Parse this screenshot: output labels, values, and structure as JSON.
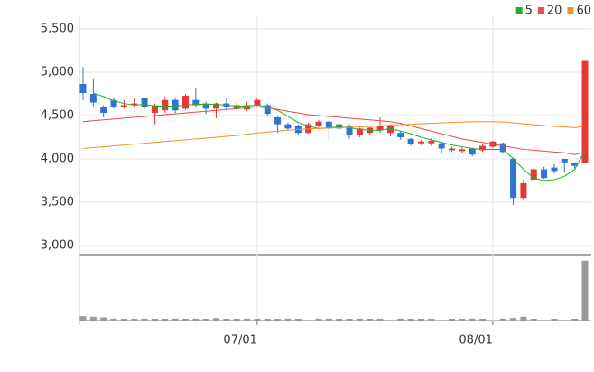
{
  "chart_data": {
    "type": "candlestick",
    "categories": [
      null,
      null,
      null,
      null,
      null,
      null,
      null,
      null,
      null,
      null,
      null,
      null,
      null,
      null,
      null,
      null,
      null,
      "07/01",
      null,
      null,
      null,
      null,
      null,
      null,
      null,
      null,
      null,
      null,
      null,
      null,
      null,
      null,
      null,
      null,
      null,
      null,
      null,
      null,
      null,
      null,
      "08/01",
      null,
      null,
      null,
      null,
      null,
      null,
      null,
      null,
      null
    ],
    "open": [
      4865,
      4750,
      4600,
      4680,
      4600,
      4620,
      4700,
      4530,
      4560,
      4680,
      4580,
      4680,
      4640,
      4580,
      4640,
      4580,
      4570,
      4620,
      4620,
      4480,
      4400,
      4380,
      4300,
      4380,
      4430,
      4400,
      4380,
      4280,
      4300,
      4330,
      4300,
      4300,
      4230,
      4180,
      4180,
      4180,
      4100,
      4090,
      4120,
      4100,
      4140,
      4180,
      4000,
      3550,
      3760,
      3880,
      3900,
      4000,
      3950,
      3950
    ],
    "high": [
      5060,
      4930,
      4620,
      4700,
      4680,
      4700,
      4700,
      4640,
      4720,
      4700,
      4750,
      4820,
      4660,
      4650,
      4700,
      4650,
      4660,
      4700,
      4640,
      4500,
      4420,
      4400,
      4420,
      4450,
      4450,
      4420,
      4400,
      4360,
      4380,
      4480,
      4400,
      4320,
      4240,
      4220,
      4240,
      4200,
      4140,
      4130,
      4130,
      4170,
      4210,
      4190,
      4020,
      3760,
      3900,
      3910,
      3940,
      4000,
      3960,
      5130
    ],
    "low": [
      4680,
      4600,
      4480,
      4580,
      4580,
      4590,
      4580,
      4400,
      4530,
      4530,
      4560,
      4590,
      4520,
      4470,
      4560,
      4550,
      4550,
      4610,
      4500,
      4300,
      4330,
      4280,
      4290,
      4360,
      4220,
      4330,
      4230,
      4250,
      4270,
      4300,
      4260,
      4220,
      4150,
      4160,
      4150,
      4060,
      4080,
      4060,
      4030,
      4080,
      4130,
      4060,
      3470,
      3530,
      3740,
      3770,
      3830,
      3850,
      3880,
      3950
    ],
    "close": [
      4760,
      4650,
      4530,
      4600,
      4620,
      4640,
      4600,
      4620,
      4680,
      4560,
      4730,
      4620,
      4580,
      4640,
      4600,
      4620,
      4620,
      4680,
      4520,
      4400,
      4350,
      4300,
      4400,
      4430,
      4350,
      4350,
      4270,
      4350,
      4360,
      4380,
      4380,
      4250,
      4170,
      4200,
      4210,
      4120,
      4120,
      4110,
      4050,
      4150,
      4200,
      4080,
      3550,
      3720,
      3880,
      3780,
      3860,
      3960,
      3920,
      5130
    ],
    "up_color": "#e53935",
    "down_color": "#2f74d0",
    "series": [
      {
        "name": "5",
        "color": "#22b022",
        "values": [
          null,
          4760,
          4720,
          4670,
          4640,
          4620,
          4630,
          4610,
          4610,
          4610,
          4620,
          4630,
          4630,
          4630,
          4620,
          4610,
          4610,
          4620,
          4600,
          4560,
          4490,
          4420,
          4380,
          4350,
          4360,
          4370,
          4360,
          4340,
          4330,
          4330,
          4350,
          4320,
          4290,
          4250,
          4220,
          4190,
          4160,
          4140,
          4120,
          4110,
          4110,
          4110,
          4000,
          3880,
          3780,
          3750,
          3760,
          3800,
          3880,
          4100
        ]
      },
      {
        "name": "20",
        "color": "#e84a4a",
        "values": [
          4430,
          4440,
          4450,
          4460,
          4470,
          4480,
          4490,
          4500,
          4510,
          4520,
          4530,
          4540,
          4550,
          4560,
          4570,
          4580,
          4590,
          4600,
          4590,
          4570,
          4550,
          4530,
          4510,
          4500,
          4490,
          4480,
          4470,
          4460,
          4450,
          4440,
          4430,
          4410,
          4380,
          4350,
          4320,
          4290,
          4260,
          4230,
          4210,
          4190,
          4170,
          4150,
          4130,
          4110,
          4100,
          4090,
          4080,
          4070,
          4050,
          4080
        ]
      },
      {
        "name": "60",
        "color": "#f0902a",
        "values": [
          4120,
          4130,
          4140,
          4150,
          4160,
          4170,
          4180,
          4190,
          4200,
          4210,
          4220,
          4230,
          4240,
          4250,
          4260,
          4270,
          4285,
          4300,
          4310,
          4320,
          4330,
          4340,
          4345,
          4350,
          4355,
          4360,
          4365,
          4370,
          4375,
          4380,
          4390,
          4395,
          4400,
          4405,
          4410,
          4415,
          4420,
          4425,
          4428,
          4430,
          4430,
          4425,
          4415,
          4405,
          4395,
          4385,
          4375,
          4368,
          4360,
          4380
        ]
      }
    ],
    "volume": [
      7,
      6,
      5,
      3,
      3,
      3,
      3,
      3,
      3,
      3,
      3,
      3,
      3,
      4,
      3,
      3,
      3,
      3,
      3,
      3,
      3,
      3,
      0,
      3,
      3,
      3,
      3,
      3,
      3,
      3,
      0,
      3,
      3,
      3,
      3,
      0,
      3,
      3,
      3,
      3,
      0,
      3,
      4,
      6,
      3,
      0,
      3,
      0,
      3,
      96
    ],
    "volume_color": "#999999",
    "volume_ylim": [
      0,
      100
    ],
    "ylim": [
      3000,
      5500
    ],
    "yticks": [
      {
        "value": 3000,
        "label": "3,000"
      },
      {
        "value": 3500,
        "label": "3,500"
      },
      {
        "value": 4000,
        "label": "4,000"
      },
      {
        "value": 4500,
        "label": "4,500"
      },
      {
        "value": 5000,
        "label": "5,000"
      },
      {
        "value": 5500,
        "label": "5,500"
      }
    ],
    "grid": true,
    "legend": "top-right"
  }
}
